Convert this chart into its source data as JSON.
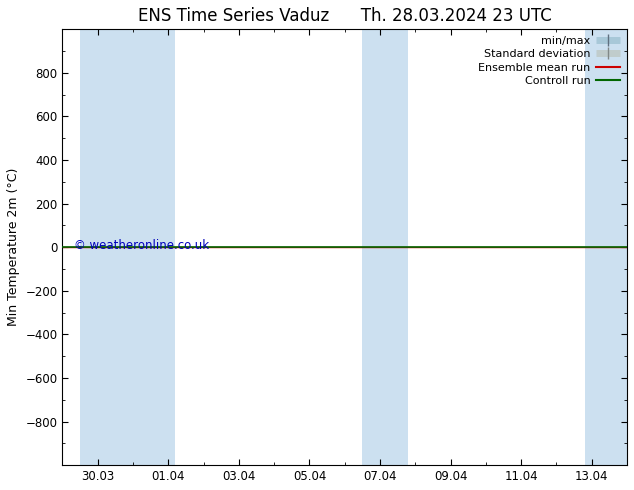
{
  "title": "ENS Time Series Vaduz      Th. 28.03.2024 23 UTC",
  "ylabel": "Min Temperature 2m (°C)",
  "ylim_top": -1000,
  "ylim_bottom": 1000,
  "yticks": [
    -800,
    -600,
    -400,
    -200,
    0,
    200,
    400,
    600,
    800
  ],
  "xtick_labels": [
    "30.03",
    "01.04",
    "03.04",
    "05.04",
    "07.04",
    "09.04",
    "11.04",
    "13.04"
  ],
  "xtick_positions": [
    1,
    3,
    5,
    7,
    9,
    11,
    13,
    15
  ],
  "xlim": [
    0,
    16
  ],
  "blue_bands": [
    [
      0.5,
      2.0
    ],
    [
      1.9,
      3.2
    ],
    [
      8.5,
      9.8
    ],
    [
      14.8,
      16.0
    ]
  ],
  "green_line_y": 0,
  "red_line_y": 0,
  "watermark": "© weatheronline.co.uk",
  "watermark_color": "#0000bb",
  "background_color": "#ffffff",
  "plot_bg_color": "#ffffff",
  "band_color": "#cce0f0",
  "title_fontsize": 12,
  "axis_fontsize": 9,
  "tick_fontsize": 8.5
}
